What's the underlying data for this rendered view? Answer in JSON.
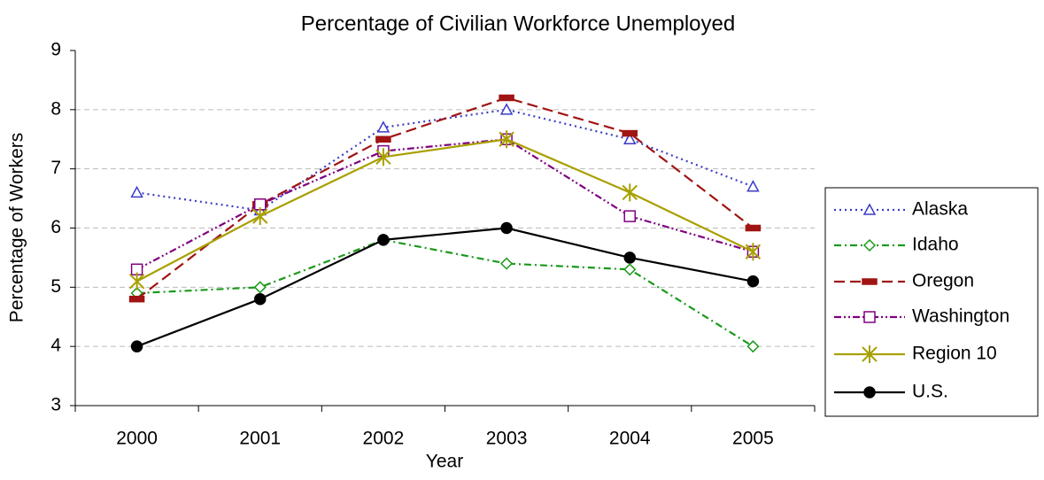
{
  "chart_data": {
    "type": "line",
    "title": "Percentage of Civilian Workforce Unemployed",
    "x_label": "Year",
    "y_label": "Percentage of Workers",
    "categories": [
      "2000",
      "2001",
      "2002",
      "2003",
      "2004",
      "2005"
    ],
    "ylim": [
      3,
      9
    ],
    "yticks": [
      3,
      4,
      5,
      6,
      7,
      8,
      9
    ],
    "grid": true,
    "legend": "right",
    "series": [
      {
        "name": "Alaska",
        "color": "#3c3cc8",
        "dash": "2,4",
        "marker": "triangle",
        "values": [
          6.6,
          6.3,
          7.7,
          8.0,
          7.5,
          6.7
        ]
      },
      {
        "name": "Idaho",
        "color": "#1a9a1a",
        "dash": "8,4,2,4",
        "marker": "diamond",
        "values": [
          4.9,
          5.0,
          5.8,
          5.4,
          5.3,
          4.0
        ]
      },
      {
        "name": "Oregon",
        "color": "#a01414",
        "dash": "12,6",
        "marker": "bar",
        "values": [
          4.8,
          6.4,
          7.5,
          8.2,
          7.6,
          6.0
        ]
      },
      {
        "name": "Washington",
        "color": "#800080",
        "dash": "8,3,2,3,2,3",
        "marker": "square",
        "values": [
          5.3,
          6.4,
          7.3,
          7.5,
          6.2,
          5.6
        ]
      },
      {
        "name": "Region 10",
        "color": "#a8a000",
        "dash": "",
        "marker": "star",
        "values": [
          5.1,
          6.2,
          7.2,
          7.5,
          6.6,
          5.6
        ]
      },
      {
        "name": "U.S.",
        "color": "#000000",
        "dash": "",
        "marker": "circle",
        "values": [
          4.0,
          4.8,
          5.8,
          6.0,
          5.5,
          5.1
        ]
      }
    ]
  }
}
